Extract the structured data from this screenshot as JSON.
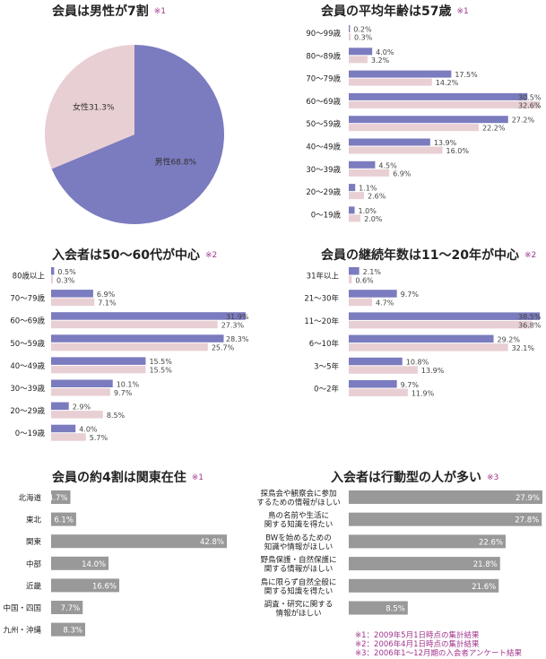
{
  "notes": {
    "n1": "※1：2009年5月1日時点の集計結果",
    "n2": "※2：2006年4月1日時点の集計結果",
    "n3": "※3：2006年1～12月期の入会者アンケート結果"
  },
  "colors": {
    "primary": "#7b7bbf",
    "secondary": "#e8cfd3",
    "gray": "#999999",
    "note": "#a0348c"
  },
  "chart_data": [
    {
      "type": "pie",
      "title": "会員は男性が7割",
      "note_mark": "※1",
      "slices": [
        {
          "label": "男性68.8%",
          "value": 68.8,
          "color": "#7b7bbf"
        },
        {
          "label": "女性31.3%",
          "value": 31.3,
          "color": "#e8cfd3"
        }
      ]
    },
    {
      "type": "bar",
      "orientation": "horizontal",
      "title": "会員の平均年齢は57歳",
      "note_mark": "※1",
      "categories": [
        "90～99歳",
        "80～89歳",
        "70～79歳",
        "60～69歳",
        "50～59歳",
        "40～49歳",
        "30～39歳",
        "20～29歳",
        "0～19歳"
      ],
      "series": [
        {
          "values": [
            0.2,
            4.0,
            17.5,
            30.5,
            27.2,
            13.9,
            4.5,
            1.1,
            1.0
          ],
          "labels": [
            "0.2%",
            "4.0%",
            "17.5%",
            "30.5%",
            "27.2%",
            "13.9%",
            "4.5%",
            "1.1%",
            "1.0%"
          ],
          "color": "#7b7bbf"
        },
        {
          "values": [
            0.3,
            3.2,
            14.2,
            32.6,
            22.2,
            16.0,
            6.9,
            2.6,
            2.0
          ],
          "labels": [
            "0.3%",
            "3.2%",
            "14.2%",
            "32.6%",
            "22.2%",
            "16.0%",
            "6.9%",
            "2.6%",
            "2.0%"
          ],
          "color": "#e8cfd3"
        }
      ],
      "xlim": [
        0,
        32.6
      ]
    },
    {
      "type": "bar",
      "orientation": "horizontal",
      "title": "入会者は50～60代が中心",
      "note_mark": "※2",
      "categories": [
        "80歳以上",
        "70～79歳",
        "60～69歳",
        "50～59歳",
        "40～49歳",
        "30～39歳",
        "20～29歳",
        "0～19歳"
      ],
      "series": [
        {
          "values": [
            0.5,
            6.9,
            31.9,
            28.3,
            15.5,
            10.1,
            2.9,
            4.0
          ],
          "labels": [
            "0.5%",
            "6.9%",
            "31.9%",
            "28.3%",
            "15.5%",
            "10.1%",
            "2.9%",
            "4.0%"
          ],
          "color": "#7b7bbf"
        },
        {
          "values": [
            0.3,
            7.1,
            27.3,
            25.7,
            15.5,
            9.7,
            8.5,
            5.7
          ],
          "labels": [
            "0.3%",
            "7.1%",
            "27.3%",
            "25.7%",
            "15.5%",
            "9.7%",
            "8.5%",
            "5.7%"
          ],
          "color": "#e8cfd3"
        }
      ],
      "xlim": [
        0,
        31.9
      ]
    },
    {
      "type": "bar",
      "orientation": "horizontal",
      "title": "会員の継続年数は11～20年が中心",
      "note_mark": "※2",
      "categories": [
        "31年以上",
        "21～30年",
        "11～20年",
        "6～10年",
        "3～5年",
        "0～2年"
      ],
      "series": [
        {
          "values": [
            2.1,
            9.7,
            38.5,
            29.2,
            10.8,
            9.7
          ],
          "labels": [
            "2.1%",
            "9.7%",
            "38.5%",
            "29.2%",
            "10.8%",
            "9.7%"
          ],
          "color": "#7b7bbf"
        },
        {
          "values": [
            0.6,
            4.7,
            36.8,
            32.1,
            13.9,
            11.9
          ],
          "labels": [
            "0.6%",
            "4.7%",
            "36.8%",
            "32.1%",
            "13.9%",
            "11.9%"
          ],
          "color": "#e8cfd3"
        }
      ],
      "xlim": [
        0,
        38.5
      ]
    },
    {
      "type": "bar",
      "orientation": "horizontal",
      "title": "会員の約4割は関東在住",
      "note_mark": "※1",
      "categories": [
        "北海道",
        "東北",
        "関東",
        "中部",
        "近畿",
        "中国・四国",
        "九州・沖縄"
      ],
      "series": [
        {
          "values": [
            4.7,
            6.1,
            42.8,
            14.0,
            16.6,
            7.7,
            8.3
          ],
          "labels": [
            "4.7%",
            "6.1%",
            "42.8%",
            "14.0%",
            "16.6%",
            "7.7%",
            "8.3%"
          ],
          "color": "#999999"
        }
      ],
      "xlim": [
        0,
        42.8
      ]
    },
    {
      "type": "bar",
      "orientation": "horizontal",
      "title": "入会者は行動型の人が多い",
      "note_mark": "※3",
      "categories": [
        [
          "探鳥会や観察会に参加",
          "するための情報がほしい"
        ],
        [
          "鳥の名前や生活に",
          "関する知識を得たい"
        ],
        [
          "BWを始めるための",
          "知識や情報がほしい"
        ],
        [
          "野鳥保護・自然保護に",
          "関する情報がほしい"
        ],
        [
          "鳥に限らず自然全般に",
          "関する知識を得たい"
        ],
        [
          "調査・研究に関する",
          "情報がほしい"
        ]
      ],
      "series": [
        {
          "values": [
            27.9,
            27.8,
            22.6,
            21.8,
            21.6,
            8.5
          ],
          "labels": [
            "27.9%",
            "27.8%",
            "22.6%",
            "21.8%",
            "21.6%",
            "8.5%"
          ],
          "color": "#999999"
        }
      ],
      "xlim": [
        0,
        27.9
      ]
    }
  ]
}
